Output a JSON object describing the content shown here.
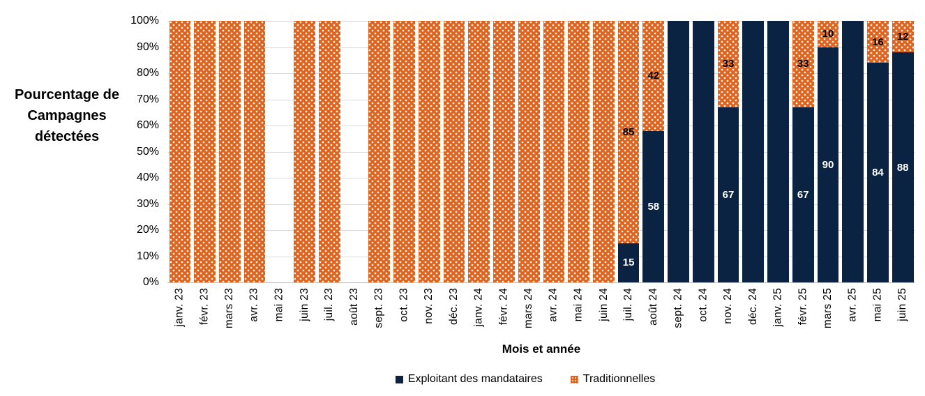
{
  "chart_data": {
    "type": "bar",
    "variant": "100-percent-stacked-column",
    "title": "",
    "ylabel": "Pourcentage de Campagnes détectées",
    "xlabel": "Mois et année",
    "ylim": [
      0,
      100
    ],
    "grid": true,
    "legend_position": "bottom",
    "y_ticks": [
      "100%",
      "90%",
      "80%",
      "70%",
      "60%",
      "50%",
      "40%",
      "30%",
      "20%",
      "10%",
      "0%"
    ],
    "categories": [
      "janv. 23",
      "févr. 23",
      "mars 23",
      "avr. 23",
      "mai 23",
      "juin 23",
      "juil. 23",
      "août 23",
      "sept. 23",
      "oct. 23",
      "nov. 23",
      "déc. 23",
      "janv. 24",
      "févr. 24",
      "mars 24",
      "avr. 24",
      "mai 24",
      "juin 24",
      "juil. 24",
      "août 24",
      "sept. 24",
      "oct. 24",
      "nov. 24",
      "déc. 24",
      "janv. 25",
      "févr. 25",
      "mars 25",
      "avr. 25",
      "mai 25",
      "juin 25"
    ],
    "missing_categories": [
      "mai 23",
      "août 23"
    ],
    "series": [
      {
        "name": "Exploitant des mandataires",
        "color": "#0A2342",
        "pattern": "solid",
        "label_color": "#FFFFFF",
        "values": [
          0,
          0,
          0,
          0,
          null,
          0,
          0,
          null,
          0,
          0,
          0,
          0,
          0,
          0,
          0,
          0,
          0,
          0,
          15,
          58,
          100,
          100,
          67,
          100,
          100,
          67,
          90,
          100,
          84,
          88
        ]
      },
      {
        "name": "Traditionnelles",
        "color": "#E0631D",
        "pattern": "white-dots",
        "label_color": "#000000",
        "values": [
          100,
          100,
          100,
          100,
          null,
          100,
          100,
          null,
          100,
          100,
          100,
          100,
          100,
          100,
          100,
          100,
          100,
          100,
          85,
          42,
          0,
          0,
          33,
          0,
          0,
          33,
          10,
          0,
          16,
          12
        ]
      }
    ],
    "data_label_rule": "labels shown only for segments strictly between 0 and 100",
    "gridline_color": "#D9D9D9",
    "axis_line_color": "#BFBFBF",
    "text_color": "#000000"
  }
}
